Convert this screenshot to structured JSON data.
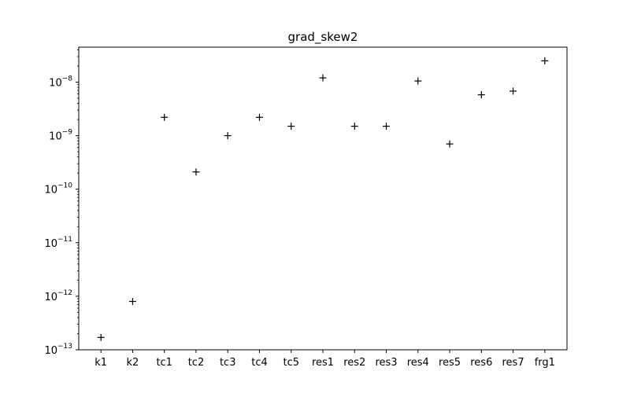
{
  "chart_data": {
    "type": "scatter",
    "title": "grad_skew2",
    "xlabel": "",
    "ylabel": "",
    "yscale": "log",
    "ylim": [
      1e-13,
      4.5e-08
    ],
    "marker": "+",
    "marker_color": "#000000",
    "grid": false,
    "categories": [
      "k1",
      "k2",
      "tc1",
      "tc2",
      "tc3",
      "tc4",
      "tc5",
      "res1",
      "res2",
      "res3",
      "res4",
      "res5",
      "res6",
      "res7",
      "frg1"
    ],
    "values": [
      1.7e-13,
      8e-13,
      2.2e-09,
      2.1e-10,
      1e-09,
      2.2e-09,
      1.5e-09,
      1.2e-08,
      1.5e-09,
      1.5e-09,
      1.05e-08,
      7e-10,
      5.8e-09,
      6.8e-09,
      2.5e-08
    ],
    "y_ticks": [
      {
        "value": 1e-13,
        "base": "10",
        "exp": "−13"
      },
      {
        "value": 1e-12,
        "base": "10",
        "exp": "−12"
      },
      {
        "value": 1e-11,
        "base": "10",
        "exp": "−11"
      },
      {
        "value": 1e-10,
        "base": "10",
        "exp": "−10"
      },
      {
        "value": 1e-09,
        "base": "10",
        "exp": "−9"
      },
      {
        "value": 1e-08,
        "base": "10",
        "exp": "−8"
      }
    ]
  }
}
